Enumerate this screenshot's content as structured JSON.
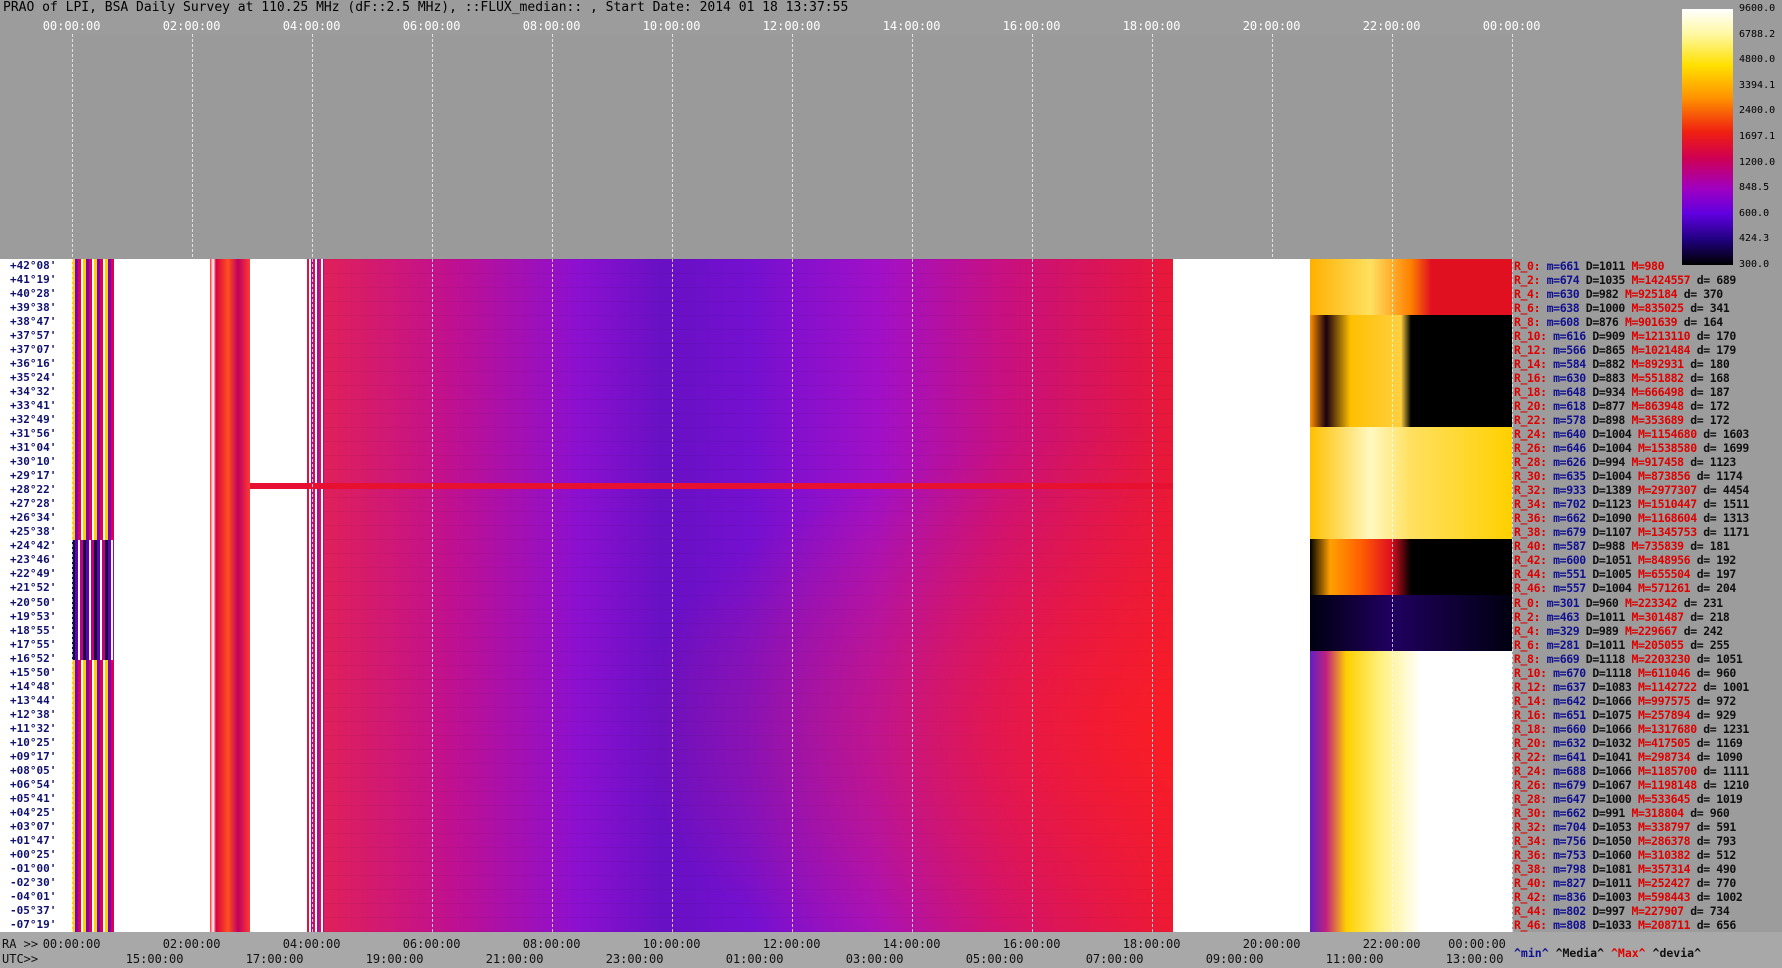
{
  "header": {
    "title": "PRAO of LPI, BSA Daily Survey at 110.25 MHz (dF::2.5 MHz), ::FLUX_median:: , Start Date: 2014 01 18 13:37:55"
  },
  "top_axis": {
    "labels": [
      "00:00:00",
      "02:00:00",
      "04:00:00",
      "06:00:00",
      "08:00:00",
      "10:00:00",
      "12:00:00",
      "14:00:00",
      "16:00:00",
      "18:00:00",
      "20:00:00",
      "22:00:00",
      "00:00:00"
    ]
  },
  "colorbar": {
    "labels": [
      "9600.0",
      "6788.2",
      "4800.0",
      "3394.1",
      "2400.0",
      "1697.1",
      "1200.0",
      "848.5",
      "600.0",
      "424.3",
      "300.0"
    ]
  },
  "declinations": [
    "+42°08'",
    "+41°19'",
    "+40°28'",
    "+39°38'",
    "+38°47'",
    "+37°57'",
    "+37°07'",
    "+36°16'",
    "+35°24'",
    "+34°32'",
    "+33°41'",
    "+32°49'",
    "+31°56'",
    "+31°04'",
    "+30°10'",
    "+29°17'",
    "+28°22'",
    "+27°28'",
    "+26°34'",
    "+25°38'",
    "+24°42'",
    "+23°46'",
    "+22°49'",
    "+21°52'",
    "+20°50'",
    "+19°53'",
    "+18°55'",
    "+17°55'",
    "+16°52'",
    "+15°50'",
    "+14°48'",
    "+13°44'",
    "+12°38'",
    "+11°32'",
    "+10°25'",
    "+09°17'",
    "+08°05'",
    "+06°54'",
    "+05°41'",
    "+04°25'",
    "+03°07'",
    "+01°47'",
    "+00°25'",
    "-01°00'",
    "-02°30'",
    "-04°01'",
    "-05°37'",
    "-07°19'"
  ],
  "stats": {
    "rows": [
      [
        "R_0:",
        "m=661",
        "D=1011",
        "M=980"
      ],
      [
        "R_2:",
        "m=674",
        "D=1035",
        "M=1424557",
        "d= 689"
      ],
      [
        "R_4:",
        "m=630",
        "D=982",
        "M=925184",
        "d= 370"
      ],
      [
        "R_6:",
        "m=638",
        "D=1000",
        "M=835025",
        "d= 341"
      ],
      [
        "R_8:",
        "m=608",
        "D=876",
        "M=901639",
        "d= 164"
      ],
      [
        "R_10:",
        "m=616",
        "D=909",
        "M=1213110",
        "d= 170"
      ],
      [
        "R_12:",
        "m=566",
        "D=865",
        "M=1021484",
        "d= 179"
      ],
      [
        "R_14:",
        "m=584",
        "D=882",
        "M=892931",
        "d= 180"
      ],
      [
        "R_16:",
        "m=630",
        "D=883",
        "M=551882",
        "d= 168"
      ],
      [
        "R_18:",
        "m=648",
        "D=934",
        "M=666498",
        "d= 187"
      ],
      [
        "R_20:",
        "m=618",
        "D=877",
        "M=863948",
        "d= 172"
      ],
      [
        "R_22:",
        "m=578",
        "D=898",
        "M=353689",
        "d= 172"
      ],
      [
        "R_24:",
        "m=640",
        "D=1004",
        "M=1154680",
        "d= 1603"
      ],
      [
        "R_26:",
        "m=646",
        "D=1004",
        "M=1538580",
        "d= 1699"
      ],
      [
        "R_28:",
        "m=626",
        "D=994",
        "M=917458",
        "d= 1123"
      ],
      [
        "R_30:",
        "m=635",
        "D=1004",
        "M=873856",
        "d= 1174"
      ],
      [
        "R_32:",
        "m=933",
        "D=1389",
        "M=2977307",
        "d= 4454"
      ],
      [
        "R_34:",
        "m=702",
        "D=1123",
        "M=1510447",
        "d= 1511"
      ],
      [
        "R_36:",
        "m=662",
        "D=1090",
        "M=1168604",
        "d= 1313"
      ],
      [
        "R_38:",
        "m=679",
        "D=1107",
        "M=1345753",
        "d= 1171"
      ],
      [
        "R_40:",
        "m=587",
        "D=988",
        "M=735839",
        "d= 181"
      ],
      [
        "R_42:",
        "m=600",
        "D=1051",
        "M=848956",
        "d= 192"
      ],
      [
        "R_44:",
        "m=551",
        "D=1005",
        "M=655504",
        "d= 197"
      ],
      [
        "R_46:",
        "m=557",
        "D=1004",
        "M=571261",
        "d= 204"
      ],
      [
        "R_0:",
        "m=301",
        "D=960",
        "M=223342",
        "d= 231"
      ],
      [
        "R_2:",
        "m=463",
        "D=1011",
        "M=301487",
        "d= 218"
      ],
      [
        "R_4:",
        "m=329",
        "D=989",
        "M=229667",
        "d= 242"
      ],
      [
        "R_6:",
        "m=281",
        "D=1011",
        "M=205055",
        "d= 255"
      ],
      [
        "R_8:",
        "m=669",
        "D=1118",
        "M=2203230",
        "d= 1051"
      ],
      [
        "R_10:",
        "m=670",
        "D=1118",
        "M=611046",
        "d= 960"
      ],
      [
        "R_12:",
        "m=637",
        "D=1083",
        "M=1142722",
        "d= 1001"
      ],
      [
        "R_14:",
        "m=642",
        "D=1066",
        "M=997575",
        "d= 972"
      ],
      [
        "R_16:",
        "m=651",
        "D=1075",
        "M=257894",
        "d= 929"
      ],
      [
        "R_18:",
        "m=660",
        "D=1066",
        "M=1317680",
        "d= 1231"
      ],
      [
        "R_20:",
        "m=632",
        "D=1032",
        "M=417505",
        "d= 1169"
      ],
      [
        "R_22:",
        "m=641",
        "D=1041",
        "M=298734",
        "d= 1090"
      ],
      [
        "R_24:",
        "m=688",
        "D=1066",
        "M=1185700",
        "d= 1111"
      ],
      [
        "R_26:",
        "m=679",
        "D=1067",
        "M=1198148",
        "d= 1210"
      ],
      [
        "R_28:",
        "m=647",
        "D=1000",
        "M=533645",
        "d= 1019"
      ],
      [
        "R_30:",
        "m=662",
        "D=991",
        "M=318804",
        "d= 960"
      ],
      [
        "R_32:",
        "m=704",
        "D=1053",
        "M=338797",
        "d= 591"
      ],
      [
        "R_34:",
        "m=756",
        "D=1050",
        "M=286378",
        "d= 793"
      ],
      [
        "R_36:",
        "m=753",
        "D=1060",
        "M=310382",
        "d= 512"
      ],
      [
        "R_38:",
        "m=798",
        "D=1081",
        "M=357314",
        "d= 490"
      ],
      [
        "R_40:",
        "m=827",
        "D=1011",
        "M=252427",
        "d= 770"
      ],
      [
        "R_42:",
        "m=836",
        "D=1003",
        "M=598443",
        "d= 1002"
      ],
      [
        "R_44:",
        "m=802",
        "D=997",
        "M=227907",
        "d= 734"
      ],
      [
        "R_46:",
        "m=808",
        "D=1033",
        "M=208711",
        "d= 656"
      ]
    ],
    "footer": [
      "^min^",
      "^Media^",
      "^Max^",
      "^devia^"
    ]
  },
  "bottom_axis": {
    "ra_prefix": "RA >>",
    "ra_labels": [
      "00:00:00",
      "02:00:00",
      "04:00:00",
      "06:00:00",
      "08:00:00",
      "10:00:00",
      "12:00:00",
      "14:00:00",
      "16:00:00",
      "18:00:00",
      "20:00:00",
      "22:00:00",
      "00:00:00"
    ],
    "utc_prefix": "UTC>>",
    "utc_labels": [
      "15:00:00",
      "17:00:00",
      "19:00:00",
      "21:00:00",
      "23:00:00",
      "01:00:00",
      "03:00:00",
      "05:00:00",
      "07:00:00",
      "09:00:00",
      "11:00:00",
      "13:00:00"
    ]
  }
}
